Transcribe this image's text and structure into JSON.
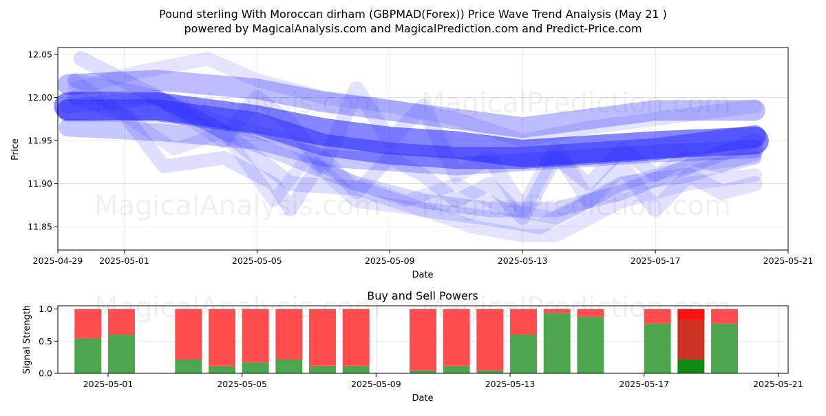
{
  "title_line1": "Pound sterling With Moroccan dirham (GBPMAD(Forex)) Price Wave Trend Analysis (May 21 )",
  "title_line2": "powered by MagicalAnalysis.com and MagicalPrediction.com and Predict-Price.com",
  "watermarks": {
    "analysis": "MagicalAnalysis.com",
    "prediction": "MagicalPrediction.com"
  },
  "chart_data": [
    {
      "type": "line",
      "title": "",
      "xlabel": "Date",
      "ylabel": "Price",
      "xlim": [
        -2.0,
        20.0
      ],
      "ylim": [
        11.823,
        12.058
      ],
      "x_ticks": [
        {
          "pos": -2,
          "label": "2025-04-29"
        },
        {
          "pos": 0,
          "label": "2025-05-01"
        },
        {
          "pos": 4,
          "label": "2025-05-05"
        },
        {
          "pos": 8,
          "label": "2025-05-09"
        },
        {
          "pos": 12,
          "label": "2025-05-13"
        },
        {
          "pos": 16,
          "label": "2025-05-17"
        },
        {
          "pos": 20,
          "label": "2025-05-21"
        }
      ],
      "y_ticks": [
        11.85,
        11.9,
        11.95,
        12.0,
        12.05
      ],
      "series": [
        {
          "name": "wave-core",
          "width": 40,
          "opacity": 0.55,
          "x": [
            -1.7,
            1,
            4,
            6,
            8,
            10,
            12,
            14,
            16,
            19
          ],
          "y": [
            11.99,
            11.99,
            11.975,
            11.96,
            11.95,
            11.945,
            11.935,
            11.94,
            11.945,
            11.95
          ]
        },
        {
          "name": "wave-mid",
          "width": 32,
          "opacity": 0.45,
          "x": [
            -1.7,
            1,
            4,
            6,
            8,
            10,
            12,
            14,
            16,
            19
          ],
          "y": [
            11.985,
            11.985,
            11.97,
            11.945,
            11.935,
            11.93,
            11.93,
            11.935,
            11.94,
            11.955
          ]
        },
        {
          "name": "wave-upper-band",
          "width": 30,
          "opacity": 0.3,
          "x": [
            -1.7,
            1,
            4,
            6,
            8,
            10,
            12,
            14,
            16,
            19
          ],
          "y": [
            12.015,
            12.02,
            12.01,
            11.995,
            11.985,
            11.975,
            11.965,
            11.975,
            11.985,
            11.985
          ]
        },
        {
          "name": "wave-lower-band",
          "width": 26,
          "opacity": 0.25,
          "x": [
            -1.7,
            1,
            4,
            6,
            8,
            10,
            12,
            14,
            16,
            19
          ],
          "y": [
            11.965,
            11.96,
            11.95,
            11.93,
            11.925,
            11.92,
            11.925,
            11.93,
            11.935,
            11.94
          ]
        },
        {
          "name": "wave-a",
          "width": 22,
          "opacity": 0.18,
          "x": [
            -1.7,
            1,
            3,
            5,
            7,
            9,
            11,
            13,
            15,
            17,
            19
          ],
          "y": [
            11.99,
            12.0,
            11.96,
            11.93,
            11.9,
            11.88,
            11.87,
            11.87,
            11.89,
            11.92,
            11.95
          ]
        },
        {
          "name": "wave-b",
          "width": 22,
          "opacity": 0.15,
          "x": [
            -1.3,
            1,
            3,
            5,
            7,
            9,
            11,
            12.5,
            15,
            17,
            19
          ],
          "y": [
            12.045,
            12.0,
            11.96,
            11.9,
            11.895,
            11.87,
            11.86,
            11.85,
            11.9,
            11.91,
            11.935
          ]
        },
        {
          "name": "wave-c",
          "width": 20,
          "opacity": 0.15,
          "x": [
            -1.5,
            0,
            1.2,
            3,
            4.5,
            5,
            6,
            7,
            8,
            9,
            10,
            11,
            12,
            13,
            14,
            15,
            16,
            17,
            18,
            19
          ],
          "y": [
            12.0,
            11.98,
            11.92,
            11.93,
            11.9,
            11.87,
            11.93,
            11.89,
            11.93,
            11.91,
            11.88,
            11.9,
            11.86,
            11.93,
            11.9,
            11.94,
            11.91,
            11.93,
            11.92,
            11.93
          ]
        },
        {
          "name": "wave-d",
          "width": 22,
          "opacity": 0.13,
          "x": [
            -1.5,
            1,
            3,
            4,
            5,
            6,
            7,
            8,
            9,
            10,
            11,
            12,
            13,
            14,
            15,
            16,
            17,
            18,
            19
          ],
          "y": [
            12.02,
            12.0,
            11.95,
            12.0,
            11.97,
            11.92,
            12.01,
            11.95,
            11.99,
            11.91,
            11.93,
            11.87,
            11.94,
            11.88,
            11.92,
            11.87,
            11.91,
            11.89,
            11.9
          ]
        },
        {
          "name": "wave-e",
          "width": 20,
          "opacity": 0.12,
          "x": [
            -1.5,
            1,
            3,
            5,
            7,
            9,
            10.5,
            12,
            13,
            14,
            15,
            17,
            19
          ],
          "y": [
            12.0,
            12.0,
            11.97,
            11.95,
            11.88,
            11.87,
            11.85,
            11.84,
            11.84,
            11.86,
            11.88,
            11.9,
            11.91
          ]
        },
        {
          "name": "wave-f",
          "width": 20,
          "opacity": 0.12,
          "x": [
            -1.5,
            0.5,
            2.5,
            4,
            6,
            8,
            10,
            12,
            14,
            16,
            18,
            19
          ],
          "y": [
            12.01,
            12.03,
            12.045,
            12.02,
            12.0,
            11.99,
            11.975,
            11.95,
            11.965,
            11.975,
            11.985,
            11.99
          ]
        },
        {
          "name": "wave-g",
          "width": 18,
          "opacity": 0.12,
          "x": [
            -1.5,
            0,
            1.5,
            3,
            4.5,
            5.5,
            7,
            8.5,
            10,
            11.5,
            13,
            15,
            17,
            19
          ],
          "y": [
            12.02,
            11.98,
            11.94,
            11.96,
            11.88,
            11.93,
            11.9,
            11.88,
            11.9,
            11.87,
            11.86,
            11.9,
            11.92,
            11.93
          ]
        }
      ]
    },
    {
      "type": "bar",
      "title": "Buy and Sell Powers",
      "xlabel": "Date",
      "ylabel": "Signal Strength",
      "xlim": [
        -1.5,
        20.3
      ],
      "ylim": [
        0,
        1.05
      ],
      "x_ticks": [
        {
          "pos": 0,
          "label": "2025-05-01"
        },
        {
          "pos": 4,
          "label": "2025-05-05"
        },
        {
          "pos": 8,
          "label": "2025-05-09"
        },
        {
          "pos": 12,
          "label": "2025-05-13"
        },
        {
          "pos": 16,
          "label": "2025-05-17"
        },
        {
          "pos": 20,
          "label": "2025-05-21"
        }
      ],
      "y_ticks": [
        {
          "value": 0,
          "label": "0.0"
        },
        {
          "value": 0.5,
          "label": "0.5"
        },
        {
          "value": 1,
          "label": "1.0"
        }
      ],
      "bars": [
        {
          "x": -0.6,
          "buy": 0.55,
          "sell": 0.45,
          "buy_color": "#4da64d",
          "sell_color": "#ff4d4d"
        },
        {
          "x": 0.4,
          "buy": 0.6,
          "sell": 0.4,
          "buy_color": "#4da64d",
          "sell_color": "#ff4d4d"
        },
        {
          "x": 2.4,
          "buy": 0.22,
          "sell": 0.78,
          "buy_color": "#4da64d",
          "sell_color": "#ff4d4d"
        },
        {
          "x": 3.4,
          "buy": 0.12,
          "sell": 0.88,
          "buy_color": "#4da64d",
          "sell_color": "#ff4d4d"
        },
        {
          "x": 4.4,
          "buy": 0.17,
          "sell": 0.83,
          "buy_color": "#4da64d",
          "sell_color": "#ff4d4d"
        },
        {
          "x": 5.4,
          "buy": 0.22,
          "sell": 0.78,
          "buy_color": "#4da64d",
          "sell_color": "#ff4d4d"
        },
        {
          "x": 6.4,
          "buy": 0.12,
          "sell": 0.88,
          "buy_color": "#4da64d",
          "sell_color": "#ff4d4d"
        },
        {
          "x": 7.4,
          "buy": 0.12,
          "sell": 0.88,
          "buy_color": "#4da64d",
          "sell_color": "#ff4d4d"
        },
        {
          "x": 9.4,
          "buy": 0.05,
          "sell": 0.95,
          "buy_color": "#4da64d",
          "sell_color": "#ff4d4d"
        },
        {
          "x": 10.4,
          "buy": 0.12,
          "sell": 0.88,
          "buy_color": "#4da64d",
          "sell_color": "#ff4d4d"
        },
        {
          "x": 11.4,
          "buy": 0.05,
          "sell": 0.95,
          "buy_color": "#4da64d",
          "sell_color": "#ff4d4d"
        },
        {
          "x": 12.4,
          "buy": 0.61,
          "sell": 0.39,
          "buy_color": "#4da64d",
          "sell_color": "#ff4d4d"
        },
        {
          "x": 13.4,
          "buy": 0.94,
          "sell": 0.06,
          "buy_color": "#4da64d",
          "sell_color": "#ff4d4d"
        },
        {
          "x": 14.4,
          "buy": 0.88,
          "sell": 0.12,
          "buy_color": "#4da64d",
          "sell_color": "#ff4d4d"
        },
        {
          "x": 16.4,
          "buy": 0.78,
          "sell": 0.22,
          "buy_color": "#4da64d",
          "sell_color": "#ff4d4d"
        },
        {
          "x": 17.4,
          "buy": 0.22,
          "sell": 0.78,
          "buy_color": "#118811",
          "sell_color": "#cc3322",
          "top_color": "#ff1111",
          "top": 0.17
        },
        {
          "x": 18.4,
          "buy": 0.78,
          "sell": 0.22,
          "buy_color": "#4da64d",
          "sell_color": "#ff4d4d"
        }
      ],
      "bar_width": 0.8
    }
  ]
}
